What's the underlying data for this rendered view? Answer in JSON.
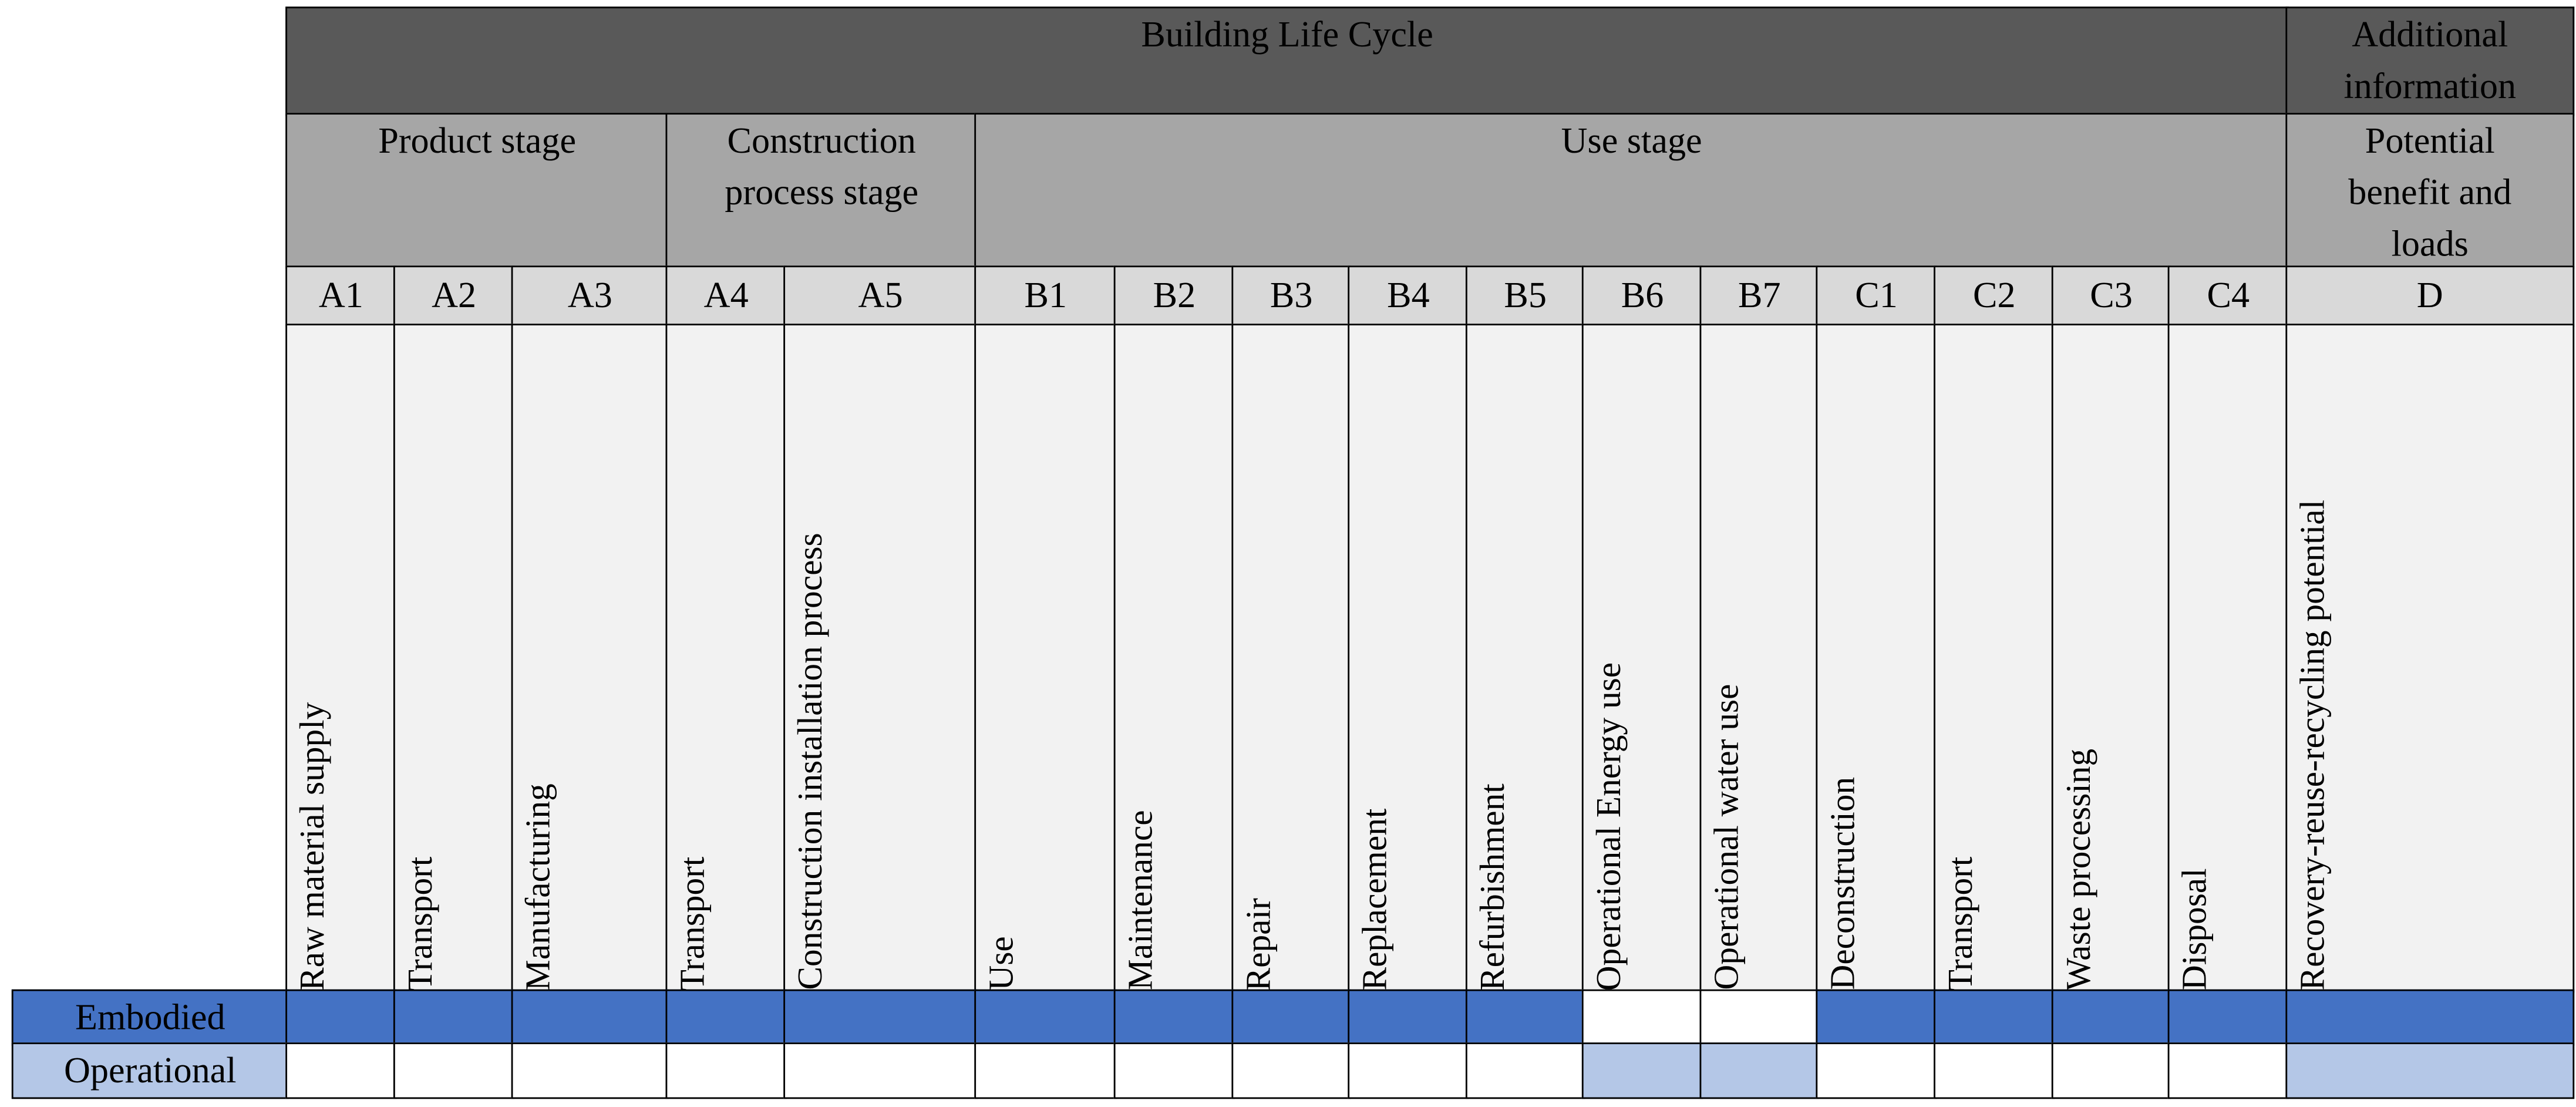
{
  "header": {
    "title": "Building Life Cycle",
    "additional": "Additional information"
  },
  "stages": [
    {
      "label": "Product stage"
    },
    {
      "label": "Construction process stage"
    },
    {
      "label": "Use stage"
    },
    {
      "label": "Potential benefit and loads"
    }
  ],
  "modules": [
    {
      "code": "A1",
      "description": "Raw material supply"
    },
    {
      "code": "A2",
      "description": "Transport"
    },
    {
      "code": "A3",
      "description": "Manufacturing"
    },
    {
      "code": "A4",
      "description": "Transport"
    },
    {
      "code": "A5",
      "description": "Construction installation process"
    },
    {
      "code": "B1",
      "description": "Use"
    },
    {
      "code": "B2",
      "description": "Maintenance"
    },
    {
      "code": "B3",
      "description": "Repair"
    },
    {
      "code": "B4",
      "description": "Replacement"
    },
    {
      "code": "B5",
      "description": "Refurbishment"
    },
    {
      "code": "B6",
      "description": "Operational Energy use"
    },
    {
      "code": "B7",
      "description": "Operational water use"
    },
    {
      "code": "C1",
      "description": "Deconstruction"
    },
    {
      "code": "C2",
      "description": "Transport"
    },
    {
      "code": "C3",
      "description": "Waste processing"
    },
    {
      "code": "C4",
      "description": "Disposal"
    },
    {
      "code": "D",
      "description": "Recovery-reuse-recycling potential"
    }
  ],
  "rows": [
    {
      "label": "Embodied"
    },
    {
      "label": "Operational"
    }
  ]
}
